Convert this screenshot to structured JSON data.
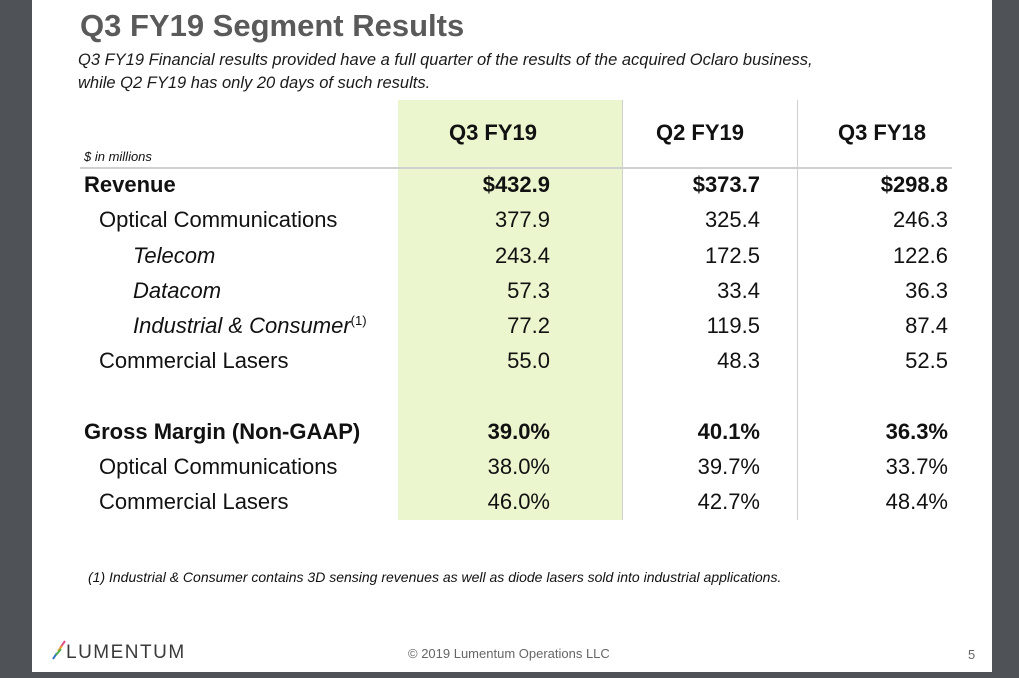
{
  "title": "Q3 FY19 Segment Results",
  "subtitle_lines": [
    "Q3 FY19 Financial results provided have a full quarter of the results of the acquired Oclaro business,",
    "while Q2 FY19 has only 20 days of such results."
  ],
  "units": "$ in millions",
  "columns": [
    "Q3 FY19",
    "Q2 FY19",
    "Q3 FY18"
  ],
  "highlight_color": "#ebf6cf",
  "rows": [
    {
      "label": "Revenue",
      "values": [
        "$432.9",
        "$373.7",
        "$298.8"
      ]
    },
    {
      "label": "Optical Communications",
      "values": [
        "377.9",
        "325.4",
        "246.3"
      ]
    },
    {
      "label": "Telecom",
      "values": [
        "243.4",
        "172.5",
        "122.6"
      ]
    },
    {
      "label": "Datacom",
      "values": [
        "57.3",
        "33.4",
        "36.3"
      ]
    },
    {
      "label": "Industrial & Consumer",
      "note": "(1)",
      "values": [
        "77.2",
        "119.5",
        "87.4"
      ]
    },
    {
      "label": "Commercial Lasers",
      "values": [
        "55.0",
        "48.3",
        "52.5"
      ]
    },
    {
      "label": "Gross Margin (Non-GAAP)",
      "values": [
        "39.0%",
        "40.1%",
        "36.3%"
      ]
    },
    {
      "label": "Optical Communications",
      "values": [
        "38.0%",
        "39.7%",
        "33.7%"
      ]
    },
    {
      "label": "Commercial Lasers",
      "values": [
        "46.0%",
        "42.7%",
        "48.4%"
      ]
    }
  ],
  "footnote": "(1) Industrial & Consumer contains 3D sensing revenues as well as diode lasers sold into industrial applications.",
  "logo": "LUMENTUM",
  "copyright": "© 2019 Lumentum Operations LLC",
  "page_number": "5"
}
